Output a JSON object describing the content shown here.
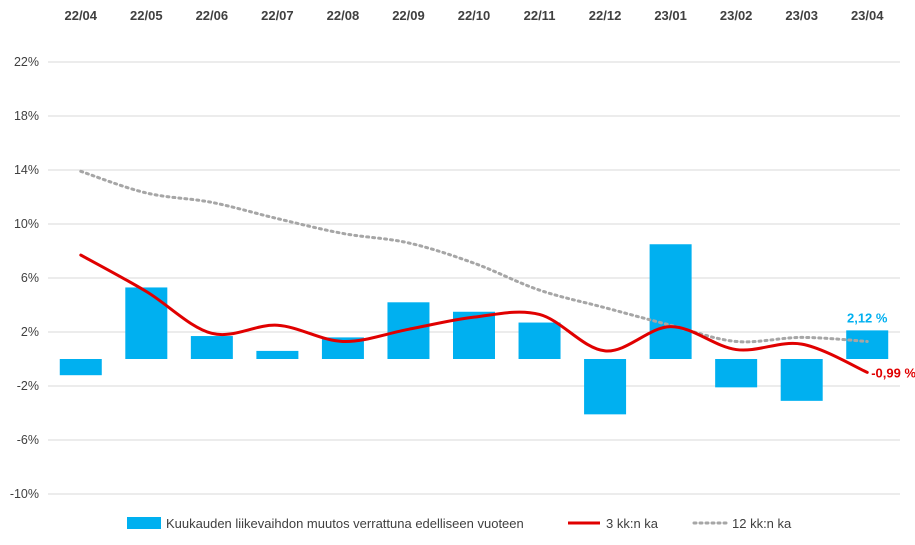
{
  "chart_data": {
    "type": "bar",
    "categories": [
      "22/04",
      "22/05",
      "22/06",
      "22/07",
      "22/08",
      "22/09",
      "22/10",
      "22/11",
      "22/12",
      "23/01",
      "23/02",
      "23/03",
      "23/04"
    ],
    "y_ticks": [
      "22%",
      "18%",
      "14%",
      "10%",
      "6%",
      "2%",
      "-2%",
      "-6%",
      "-10%"
    ],
    "ylim": [
      -10,
      22
    ],
    "grid": true,
    "legend_position": "bottom",
    "series": [
      {
        "name": "Kuukauden liikevaihdon muutos verrattuna edelliseen vuoteen",
        "kind": "bar",
        "color": "#00B0F0",
        "values": [
          -1.2,
          5.3,
          1.7,
          0.6,
          1.6,
          4.2,
          3.5,
          2.7,
          -4.1,
          8.5,
          -2.1,
          -3.1,
          2.12
        ]
      },
      {
        "name": "3 kk:n ka",
        "kind": "line",
        "color": "#E00000",
        "values": [
          7.7,
          5.0,
          1.9,
          2.5,
          1.3,
          2.2,
          3.1,
          3.3,
          0.6,
          2.4,
          0.7,
          1.1,
          -0.99
        ]
      },
      {
        "name": "12 kk:n ka",
        "kind": "line-dotted",
        "color": "#A6A6A6",
        "values": [
          13.9,
          12.3,
          11.6,
          10.4,
          9.3,
          8.6,
          7.1,
          5.1,
          3.8,
          2.5,
          1.3,
          1.6,
          1.3
        ]
      }
    ],
    "annotations": [
      {
        "text": "2,12 %",
        "series": 0,
        "index": 12,
        "color": "#00B0F0"
      },
      {
        "text": "-0,99 %",
        "series": 1,
        "index": 12,
        "color": "#E00000"
      }
    ]
  }
}
